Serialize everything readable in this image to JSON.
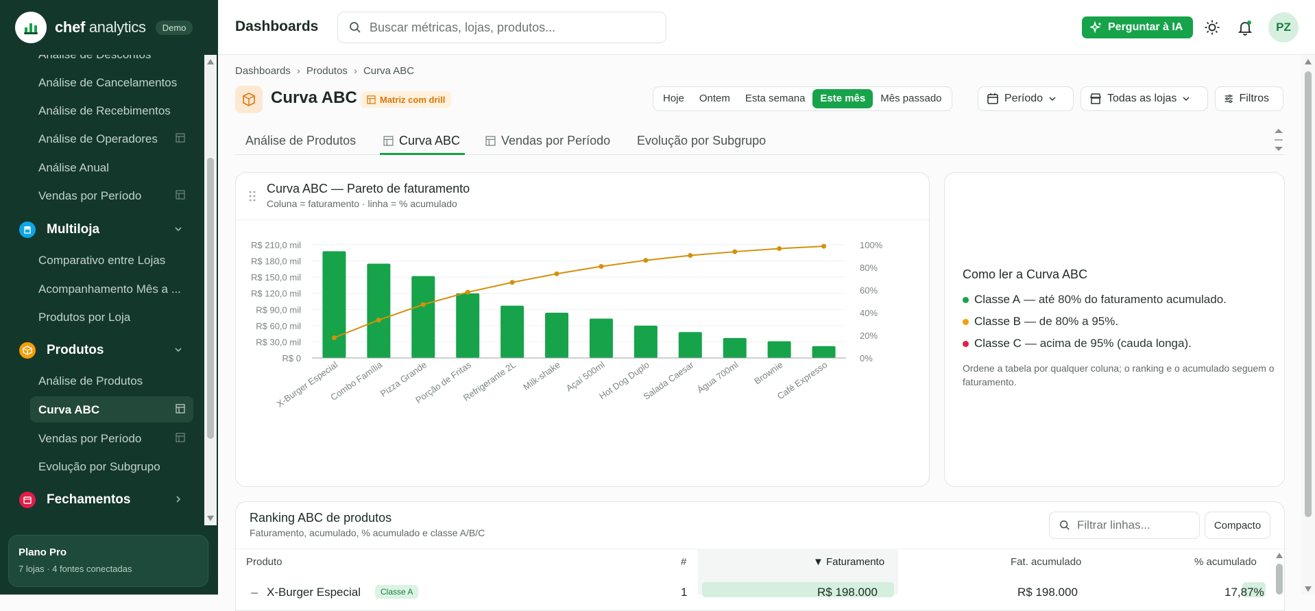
{
  "brand": {
    "name_bold": "chef",
    "name_rest": " analytics",
    "badge": "Demo"
  },
  "sidebar": {
    "items_top": [
      {
        "label": "Análise de Descontos",
        "table": false
      },
      {
        "label": "Análise de Cancelamentos",
        "table": false
      },
      {
        "label": "Análise de Recebimentos",
        "table": false
      },
      {
        "label": "Análise de Operadores",
        "table": true
      },
      {
        "label": "Análise Anual",
        "table": false
      },
      {
        "label": "Vendas por Período",
        "table": true
      }
    ],
    "group_multiloja": "Multiloja",
    "multiloja_items": [
      "Comparativo entre Lojas",
      "Acompanhamento Mês a ...",
      "Produtos por Loja"
    ],
    "group_produtos": "Produtos",
    "produtos_items": [
      "Análise de Produtos",
      "Curva ABC",
      "Vendas por Período",
      "Evolução por Subgrupo"
    ],
    "group_fechamentos": "Fechamentos",
    "plan_title": "Plano Pro",
    "plan_sub": "7 lojas · 4 fontes conectadas"
  },
  "topbar": {
    "title": "Dashboards",
    "search_placeholder": "Buscar métricas, lojas, produtos...",
    "ai_button": "Perguntar à IA",
    "avatar": "PZ"
  },
  "breadcrumb": [
    "Dashboards",
    "Produtos",
    "Curva ABC"
  ],
  "page": {
    "title": "Curva ABC",
    "badge": "Matriz com drill"
  },
  "periods": [
    "Hoje",
    "Ontem",
    "Esta semana",
    "Este mês",
    "Mês passado"
  ],
  "active_period": "Este mês",
  "controls": {
    "periodo": "Período",
    "lojas": "Todas as lojas",
    "filtros": "Filtros"
  },
  "tabs": [
    "Análise de Produtos",
    "Curva ABC",
    "Vendas por Período",
    "Evolução por Subgrupo"
  ],
  "chart_card": {
    "title": "Curva ABC — Pareto de faturamento",
    "subtitle": "Coluna = faturamento · linha = % acumulado"
  },
  "chart_data": {
    "type": "bar",
    "categories": [
      "X-Burger Especial",
      "Combo Família",
      "Pizza Grande",
      "Porção de Fritas",
      "Refrigerante 2L",
      "Milk-shake",
      "Açaí 500ml",
      "Hot Dog Duplo",
      "Salada Caesar",
      "Água 700ml",
      "Brownie",
      "Café Expresso"
    ],
    "series": [
      {
        "values": [
          198000,
          175000,
          152000,
          120000,
          97000,
          84000,
          73000,
          60000,
          48000,
          37000,
          31000,
          22000
        ],
        "axis": "left"
      },
      {
        "values": [
          17.9,
          33.5,
          47.2,
          58.1,
          66.8,
          74.4,
          80.9,
          86.3,
          90.6,
          93.9,
          96.7,
          98.7
        ],
        "axis": "right"
      }
    ],
    "yticks_left": [
      "R$ 0",
      "R$ 30,0 mil",
      "R$ 60,0 mil",
      "R$ 90,0 mil",
      "R$ 120,0 mil",
      "R$ 150,0 mil",
      "R$ 180,0 mil",
      "R$ 210,0 mil"
    ],
    "yticks_right": [
      "0%",
      "20%",
      "40%",
      "60%",
      "80%",
      "100%"
    ],
    "ylim_left": [
      0,
      210000
    ],
    "ylim_right": [
      0,
      100
    ],
    "bar_color": "#16a34a",
    "line_color": "#d4900b"
  },
  "help_card": {
    "title": "Como ler a Curva ABC",
    "classes": [
      {
        "name": "Classe A",
        "text": "— até 80% do faturamento acumulado.",
        "color": "#16a34a"
      },
      {
        "name": "Classe B",
        "text": "— de 80% a 95%.",
        "color": "#f59e0b"
      },
      {
        "name": "Classe C",
        "text": "— acima de 95% (cauda longa).",
        "color": "#e11d48"
      }
    ],
    "note": "Ordene a tabela por qualquer coluna; o ranking e o acumulado seguem o faturamento."
  },
  "ranking": {
    "title": "Ranking ABC de produtos",
    "subtitle": "Faturamento, acumulado, % acumulado e classe A/B/C",
    "filter_placeholder": "Filtrar linhas...",
    "compact": "Compacto",
    "columns": {
      "produto": "Produto",
      "rank": "#",
      "faturamento": "▼ Faturamento",
      "acumulado": "Fat. acumulado",
      "pct": "% acumulado"
    },
    "row": {
      "produto": "X-Burger Especial",
      "classe": "Classe A",
      "rank": "1",
      "faturamento": "R$ 198.000",
      "acumulado": "R$ 198.000",
      "pct": "17,87%"
    }
  }
}
